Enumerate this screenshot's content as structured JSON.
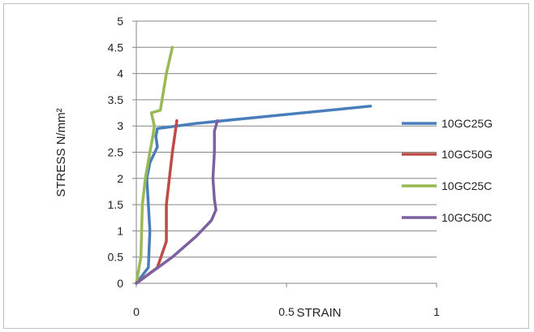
{
  "chart_data": {
    "type": "line",
    "title": "",
    "xlabel": "STRAIN",
    "ylabel": "STRESS N/mm²",
    "xlim": [
      0,
      1
    ],
    "ylim": [
      0,
      5
    ],
    "x_ticks": [
      "0",
      "0.5",
      "1"
    ],
    "y_ticks": [
      "0",
      "0.5",
      "1",
      "1.5",
      "2",
      "2.5",
      "3",
      "3.5",
      "4",
      "4.5",
      "5"
    ],
    "grid": "horizontal",
    "legend_position": "right",
    "series": [
      {
        "name": "10GC25G",
        "color": "#4a7ebb",
        "points": [
          [
            0,
            0
          ],
          [
            0.04,
            0.3
          ],
          [
            0.045,
            1.0
          ],
          [
            0.04,
            1.5
          ],
          [
            0.035,
            2.0
          ],
          [
            0.045,
            2.3
          ],
          [
            0.07,
            2.6
          ],
          [
            0.065,
            2.8
          ],
          [
            0.07,
            2.95
          ],
          [
            0.2,
            3.05
          ],
          [
            0.78,
            3.38
          ]
        ]
      },
      {
        "name": "10GC50G",
        "color": "#be4b48",
        "points": [
          [
            0,
            0
          ],
          [
            0.07,
            0.3
          ],
          [
            0.1,
            0.8
          ],
          [
            0.1,
            1.5
          ],
          [
            0.11,
            2.0
          ],
          [
            0.12,
            2.5
          ],
          [
            0.13,
            2.9
          ],
          [
            0.135,
            3.1
          ]
        ]
      },
      {
        "name": "10GC25C",
        "color": "#98b954",
        "points": [
          [
            0,
            0
          ],
          [
            0.015,
            0.5
          ],
          [
            0.02,
            1.5
          ],
          [
            0.03,
            2.0
          ],
          [
            0.045,
            2.5
          ],
          [
            0.055,
            2.8
          ],
          [
            0.06,
            3.0
          ],
          [
            0.05,
            3.25
          ],
          [
            0.08,
            3.3
          ],
          [
            0.1,
            4.0
          ],
          [
            0.12,
            4.5
          ]
        ]
      },
      {
        "name": "10GC50C",
        "color": "#7d60a0",
        "points": [
          [
            0,
            0
          ],
          [
            0.12,
            0.5
          ],
          [
            0.2,
            0.9
          ],
          [
            0.25,
            1.2
          ],
          [
            0.265,
            1.4
          ],
          [
            0.26,
            1.6
          ],
          [
            0.255,
            2.0
          ],
          [
            0.26,
            2.5
          ],
          [
            0.26,
            2.9
          ],
          [
            0.27,
            3.1
          ]
        ]
      }
    ]
  }
}
